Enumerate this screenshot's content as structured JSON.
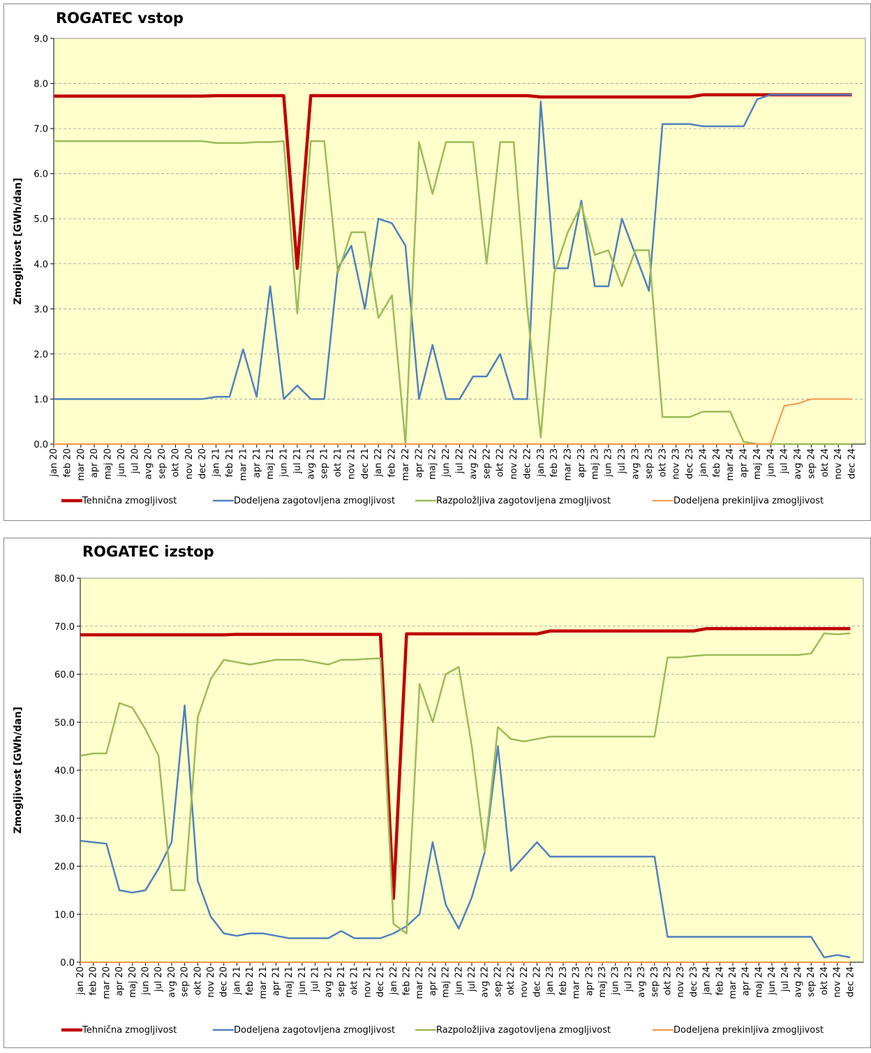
{
  "chart_data": [
    {
      "type": "line",
      "title": "ROGATEC vstop",
      "y_label": "Zmogljivost [GWh/dan]",
      "categories": [
        "jan 20",
        "feb 20",
        "mar 20",
        "apr 20",
        "maj 20",
        "jun 20",
        "jul 20",
        "avg 20",
        "sep 20",
        "okt 20",
        "nov 20",
        "dec 20",
        "jan 21",
        "feb 21",
        "mar 21",
        "apr 21",
        "maj 21",
        "jun 21",
        "jul 21",
        "avg 21",
        "sep 21",
        "okt 21",
        "nov 21",
        "dec 21",
        "jan 22",
        "feb 22",
        "mar 22",
        "apr 22",
        "maj 22",
        "jun 22",
        "jul 22",
        "avg 22",
        "sep 22",
        "okt 22",
        "nov 22",
        "dec 22",
        "jan 23",
        "feb 23",
        "mar 23",
        "apr 23",
        "maj 23",
        "jun 23",
        "jul 23",
        "avg 23",
        "sep 23",
        "okt 23",
        "nov 23",
        "dec 23",
        "jan 24",
        "feb 24",
        "mar 24",
        "apr 24",
        "maj 24",
        "jun 24",
        "jul 24",
        "avg 24",
        "sep 24",
        "okt 24",
        "nov 24",
        "dec 24"
      ],
      "ylim": [
        0,
        9
      ],
      "yticks": [
        {
          "value": 0,
          "label": "0.0"
        },
        {
          "value": 1,
          "label": "1.0"
        },
        {
          "value": 2,
          "label": "2.0"
        },
        {
          "value": 3,
          "label": "3.0"
        },
        {
          "value": 4,
          "label": "4.0"
        },
        {
          "value": 5,
          "label": "5.0"
        },
        {
          "value": 6,
          "label": "6.0"
        },
        {
          "value": 7,
          "label": "7.0"
        },
        {
          "value": 8,
          "label": "8.0"
        },
        {
          "value": 9,
          "label": "9.0"
        }
      ],
      "grid": true,
      "series": [
        {
          "name": "Tehnična zmogljivost",
          "color": "#c00000",
          "values": [
            7.72,
            7.72,
            7.72,
            7.72,
            7.72,
            7.72,
            7.72,
            7.72,
            7.72,
            7.72,
            7.72,
            7.72,
            7.73,
            7.73,
            7.73,
            7.73,
            7.73,
            7.73,
            3.9,
            7.73,
            7.73,
            7.73,
            7.73,
            7.73,
            7.73,
            7.73,
            7.73,
            7.73,
            7.73,
            7.73,
            7.73,
            7.73,
            7.73,
            7.73,
            7.73,
            7.73,
            7.7,
            7.7,
            7.7,
            7.7,
            7.7,
            7.7,
            7.7,
            7.7,
            7.7,
            7.7,
            7.7,
            7.7,
            7.75,
            7.75,
            7.75,
            7.75,
            7.75,
            7.75,
            7.75,
            7.75,
            7.75,
            7.75,
            7.75,
            7.75
          ]
        },
        {
          "name": "Dodeljena zagotovljena zmogljivost",
          "color": "#4f81bd",
          "values": [
            1.0,
            1.0,
            1.0,
            1.0,
            1.0,
            1.0,
            1.0,
            1.0,
            1.0,
            1.0,
            1.0,
            1.0,
            1.05,
            1.05,
            2.1,
            1.05,
            3.5,
            1.0,
            1.3,
            1.0,
            1.0,
            3.9,
            4.4,
            3.0,
            5.0,
            4.9,
            4.4,
            1.0,
            2.2,
            1.0,
            1.0,
            1.5,
            1.5,
            2.0,
            1.0,
            1.0,
            7.6,
            3.9,
            3.9,
            5.4,
            3.5,
            3.5,
            5.0,
            4.2,
            3.4,
            7.1,
            7.1,
            7.1,
            7.05,
            7.05,
            7.05,
            7.05,
            7.65,
            7.75,
            7.75,
            7.75,
            7.75,
            7.75,
            7.75,
            7.75
          ]
        },
        {
          "name": "Razpoložljiva zagotovljena zmogljivost",
          "color": "#9bbb59",
          "values": [
            6.72,
            6.72,
            6.72,
            6.72,
            6.72,
            6.72,
            6.72,
            6.72,
            6.72,
            6.72,
            6.72,
            6.72,
            6.68,
            6.68,
            6.68,
            6.7,
            6.7,
            6.72,
            2.9,
            6.72,
            6.72,
            3.8,
            4.7,
            4.7,
            2.8,
            3.3,
            0.0,
            6.7,
            5.55,
            6.7,
            6.7,
            6.7,
            4.0,
            6.7,
            6.7,
            3.0,
            0.15,
            3.8,
            4.7,
            5.3,
            4.2,
            4.3,
            3.5,
            4.3,
            4.3,
            0.6,
            0.6,
            0.6,
            0.72,
            0.72,
            0.72,
            0.05,
            0.0,
            0.0,
            0.0,
            0.0,
            0.0,
            0.0,
            0.0,
            0.0
          ]
        },
        {
          "name": "Dodeljena prekinljiva zmogljivost",
          "color": "#f79646",
          "values": [
            0,
            0,
            0,
            0,
            0,
            0,
            0,
            0,
            0,
            0,
            0,
            0,
            0,
            0,
            0,
            0,
            0,
            0,
            0,
            0,
            0,
            0,
            0,
            0,
            0,
            0,
            0,
            0,
            0,
            0,
            0,
            0,
            0,
            0,
            0,
            0,
            0,
            0,
            0,
            0,
            0,
            0,
            0,
            0,
            0,
            0,
            0,
            0,
            0,
            0,
            0,
            0,
            0,
            0,
            0.85,
            0.9,
            1.0,
            1.0,
            1.0,
            1.0
          ]
        }
      ]
    },
    {
      "type": "line",
      "title": "ROGATEC izstop",
      "y_label": "Zmogljivost [GWh/dan]",
      "categories": [
        "jan 20",
        "feb 20",
        "mar 20",
        "apr 20",
        "maj 20",
        "jun 20",
        "jul 20",
        "avg 20",
        "sep 20",
        "okt 20",
        "nov 20",
        "dec 20",
        "jan 21",
        "feb 21",
        "mar 21",
        "apr 21",
        "maj 21",
        "jun 21",
        "jul 21",
        "avg 21",
        "sep 21",
        "okt 21",
        "nov 21",
        "dec 21",
        "jan 22",
        "feb 22",
        "mar 22",
        "apr 22",
        "maj 22",
        "jun 22",
        "jul 22",
        "avg 22",
        "sep 22",
        "okt 22",
        "nov 22",
        "dec 22",
        "jan 23",
        "feb 23",
        "mar 23",
        "apr 23",
        "maj 23",
        "jun 23",
        "jul 23",
        "avg 23",
        "sep 23",
        "okt 23",
        "nov 23",
        "dec 23",
        "jan 24",
        "feb 24",
        "mar 24",
        "apr 24",
        "maj 24",
        "jun 24",
        "jul 24",
        "avg 24",
        "sep 24",
        "okt 24",
        "nov 24",
        "dec 24"
      ],
      "ylim": [
        0,
        80
      ],
      "yticks": [
        {
          "value": 0,
          "label": "0.0"
        },
        {
          "value": 10,
          "label": "10.0"
        },
        {
          "value": 20,
          "label": "20.0"
        },
        {
          "value": 30,
          "label": "30.0"
        },
        {
          "value": 40,
          "label": "40.0"
        },
        {
          "value": 50,
          "label": "50.0"
        },
        {
          "value": 60,
          "label": "60.0"
        },
        {
          "value": 70,
          "label": "70.0"
        },
        {
          "value": 80,
          "label": "80.0"
        }
      ],
      "grid": true,
      "series": [
        {
          "name": "Tehnična zmogljivost",
          "color": "#c00000",
          "values": [
            68.2,
            68.2,
            68.2,
            68.2,
            68.2,
            68.2,
            68.2,
            68.2,
            68.2,
            68.2,
            68.2,
            68.2,
            68.3,
            68.3,
            68.3,
            68.3,
            68.3,
            68.3,
            68.3,
            68.3,
            68.3,
            68.3,
            68.3,
            68.3,
            13.3,
            68.4,
            68.4,
            68.4,
            68.4,
            68.4,
            68.4,
            68.4,
            68.4,
            68.4,
            68.4,
            68.4,
            69.0,
            69.0,
            69.0,
            69.0,
            69.0,
            69.0,
            69.0,
            69.0,
            69.0,
            69.0,
            69.0,
            69.0,
            69.5,
            69.5,
            69.5,
            69.5,
            69.5,
            69.5,
            69.5,
            69.5,
            69.5,
            69.5,
            69.5,
            69.5
          ]
        },
        {
          "name": "Dodeljena zagotovljena zmogljivost",
          "color": "#4f81bd",
          "values": [
            25.3,
            25,
            24.7,
            15,
            14.5,
            15,
            19.5,
            25,
            53.5,
            17,
            9.5,
            6,
            5.5,
            6,
            6,
            5.5,
            5,
            5,
            5,
            5,
            6.5,
            5,
            5,
            5,
            6,
            7.5,
            10,
            25,
            12,
            7,
            13.5,
            23,
            45,
            19,
            22,
            25,
            22,
            22,
            22,
            22,
            22,
            22,
            22,
            22,
            22,
            5.3,
            5.3,
            5.3,
            5.3,
            5.3,
            5.3,
            5.3,
            5.3,
            5.3,
            5.3,
            5.3,
            5.3,
            1.0,
            1.5,
            1.0
          ]
        },
        {
          "name": "Razpoložljiva zagotovljena zmogljivost",
          "color": "#9bbb59",
          "values": [
            43,
            43.5,
            43.5,
            54,
            53,
            48.5,
            43,
            15,
            15,
            51,
            59,
            63,
            62.5,
            62,
            62.5,
            63,
            63,
            63,
            62.5,
            62,
            63,
            63,
            63.2,
            63.3,
            8,
            6,
            58,
            50,
            60,
            61.5,
            45,
            23,
            49,
            46.5,
            46,
            46.5,
            47,
            47,
            47,
            47,
            47,
            47,
            47,
            47,
            47,
            63.5,
            63.5,
            63.8,
            64,
            64,
            64,
            64,
            64,
            64,
            64,
            64,
            64.3,
            68.5,
            68.3,
            68.5
          ]
        },
        {
          "name": "Dodeljena prekinljiva zmogljivost",
          "color": "#f79646",
          "values": [
            0,
            0,
            0,
            0,
            0,
            0,
            0,
            0,
            0,
            0,
            0,
            0,
            0,
            0,
            0,
            0,
            0,
            0,
            0,
            0,
            0,
            0,
            0,
            0,
            0,
            0,
            0,
            0,
            0,
            0,
            0,
            0,
            0,
            0,
            0,
            0,
            0,
            0,
            0,
            0,
            0,
            0,
            0,
            0,
            0,
            0,
            0,
            0,
            0,
            0,
            0,
            0,
            0,
            0,
            0,
            0,
            0,
            0,
            0,
            0
          ]
        }
      ]
    }
  ]
}
